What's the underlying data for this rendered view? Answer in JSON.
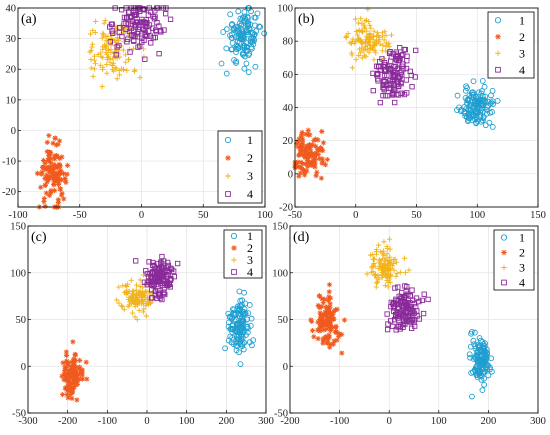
{
  "figure": {
    "colors": {
      "1": "#1f9fd0",
      "2": "#f05a1e",
      "3": "#f2b318",
      "4": "#8a2a9a"
    },
    "markers": {
      "1": "circle",
      "2": "asterisk",
      "3": "plus",
      "4": "square"
    },
    "legend_labels": [
      "1",
      "2",
      "3",
      "4"
    ]
  },
  "chart_data": [
    {
      "panel_label": "(a)",
      "type": "scatter",
      "xlim": [
        -100,
        100
      ],
      "ylim": [
        -25,
        40
      ],
      "xticks": [
        -100,
        -50,
        0,
        50,
        100
      ],
      "yticks": [
        -20,
        -10,
        0,
        10,
        20,
        30,
        40
      ],
      "grid": true,
      "legend_position": "bottom-right",
      "series": [
        {
          "name": "1",
          "center": [
            83,
            31
          ],
          "spread": [
            7,
            4.5
          ],
          "n": 130
        },
        {
          "name": "2",
          "center": [
            -72,
            -14
          ],
          "spread": [
            5.5,
            4.5
          ],
          "n": 120
        },
        {
          "name": "3",
          "center": [
            -22,
            26
          ],
          "spread": [
            11,
            4.5
          ],
          "n": 120
        },
        {
          "name": "4",
          "center": [
            -2,
            35
          ],
          "spread": [
            10,
            4.5
          ],
          "n": 120
        }
      ]
    },
    {
      "panel_label": "(b)",
      "type": "scatter",
      "xlim": [
        -50,
        150
      ],
      "ylim": [
        -20,
        100
      ],
      "xticks": [
        -50,
        0,
        50,
        100,
        150
      ],
      "yticks": [
        -20,
        0,
        20,
        40,
        60,
        80,
        100
      ],
      "grid": true,
      "legend_position": "top-right",
      "series": [
        {
          "name": "1",
          "center": [
            100,
            40
          ],
          "spread": [
            7,
            6
          ],
          "n": 130
        },
        {
          "name": "2",
          "center": [
            -38,
            12
          ],
          "spread": [
            6,
            7
          ],
          "n": 120
        },
        {
          "name": "3",
          "center": [
            10,
            80
          ],
          "spread": [
            8,
            6
          ],
          "n": 120
        },
        {
          "name": "4",
          "center": [
            30,
            59
          ],
          "spread": [
            8,
            8
          ],
          "n": 120
        }
      ]
    },
    {
      "panel_label": "(c)",
      "type": "scatter",
      "xlim": [
        -300,
        300
      ],
      "ylim": [
        -50,
        150
      ],
      "xticks": [
        -300,
        -200,
        -100,
        0,
        100,
        200,
        300
      ],
      "yticks": [
        -50,
        0,
        50,
        100,
        150
      ],
      "grid": true,
      "legend_position": "top-right",
      "series": [
        {
          "name": "1",
          "center": [
            230,
            42
          ],
          "spread": [
            13,
            14
          ],
          "n": 130
        },
        {
          "name": "2",
          "center": [
            -190,
            -10
          ],
          "spread": [
            13,
            12
          ],
          "n": 120
        },
        {
          "name": "3",
          "center": [
            -25,
            73
          ],
          "spread": [
            22,
            10
          ],
          "n": 120
        },
        {
          "name": "4",
          "center": [
            30,
            95
          ],
          "spread": [
            18,
            10
          ],
          "n": 120
        }
      ]
    },
    {
      "panel_label": "(d)",
      "type": "scatter",
      "xlim": [
        -200,
        300
      ],
      "ylim": [
        -50,
        150
      ],
      "xticks": [
        -200,
        -100,
        0,
        100,
        200,
        300
      ],
      "yticks": [
        -50,
        0,
        50,
        100,
        150
      ],
      "grid": true,
      "legend_position": "top-right",
      "series": [
        {
          "name": "1",
          "center": [
            185,
            5
          ],
          "spread": [
            10,
            12
          ],
          "n": 130
        },
        {
          "name": "2",
          "center": [
            -125,
            50
          ],
          "spread": [
            12,
            15
          ],
          "n": 120
        },
        {
          "name": "3",
          "center": [
            -10,
            107
          ],
          "spread": [
            14,
            10
          ],
          "n": 120
        },
        {
          "name": "4",
          "center": [
            30,
            60
          ],
          "spread": [
            16,
            12
          ],
          "n": 120
        }
      ]
    }
  ]
}
